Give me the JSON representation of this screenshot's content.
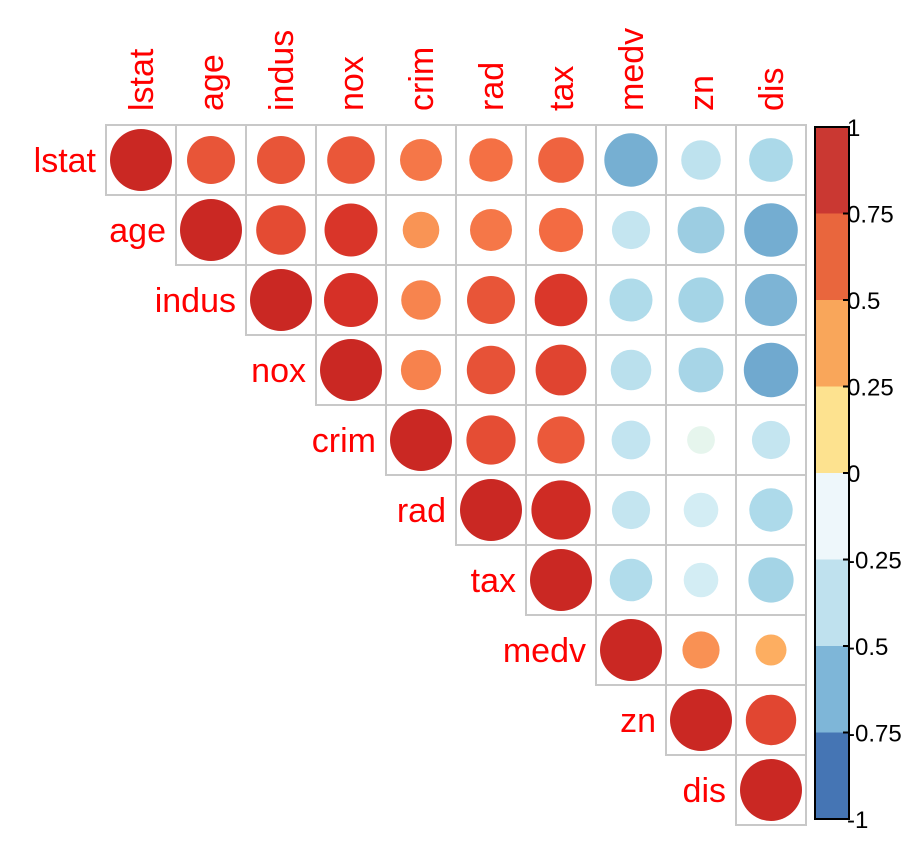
{
  "chart_data": {
    "type": "heatmap",
    "title": "",
    "variables": [
      "lstat",
      "age",
      "indus",
      "nox",
      "crim",
      "rad",
      "tax",
      "medv",
      "zn",
      "dis"
    ],
    "matrix_kind": "upper-triangle correlation matrix (circles)",
    "correlations": [
      [
        1.0,
        0.6,
        0.6,
        0.59,
        0.46,
        0.49,
        0.54,
        -0.74,
        -0.41,
        -0.5
      ],
      [
        null,
        1.0,
        0.64,
        0.73,
        0.35,
        0.46,
        0.51,
        -0.38,
        -0.57,
        -0.75
      ],
      [
        null,
        null,
        1.0,
        0.76,
        0.41,
        0.6,
        0.72,
        -0.48,
        -0.53,
        -0.71
      ],
      [
        null,
        null,
        null,
        1.0,
        0.42,
        0.61,
        0.67,
        -0.43,
        -0.52,
        -0.77
      ],
      [
        null,
        null,
        null,
        null,
        1.0,
        0.63,
        0.58,
        -0.39,
        -0.2,
        -0.38
      ],
      [
        null,
        null,
        null,
        null,
        null,
        1.0,
        0.91,
        -0.38,
        -0.31,
        -0.49
      ],
      [
        null,
        null,
        null,
        null,
        null,
        null,
        1.0,
        -0.47,
        -0.31,
        -0.53
      ],
      [
        null,
        null,
        null,
        null,
        null,
        null,
        null,
        1.0,
        0.36,
        0.25
      ],
      [
        null,
        null,
        null,
        null,
        null,
        null,
        null,
        null,
        1.0,
        0.66
      ],
      [
        null,
        null,
        null,
        null,
        null,
        null,
        null,
        null,
        null,
        1.0
      ]
    ],
    "colorbar": {
      "range": [
        -1,
        1
      ],
      "tick_labels": [
        "1",
        "0.75",
        "0.5",
        "0.25",
        "0",
        "-0.25",
        "-0.5",
        "-0.75",
        "-1"
      ],
      "bands_top_to_bottom": [
        "#CA3832",
        "#E9663D",
        "#F9A65A",
        "#FDE28F",
        "#EEF7FB",
        "#BFE1EE",
        "#7EB6D8",
        "#4575B4"
      ]
    },
    "label_color": "#FF0000"
  }
}
